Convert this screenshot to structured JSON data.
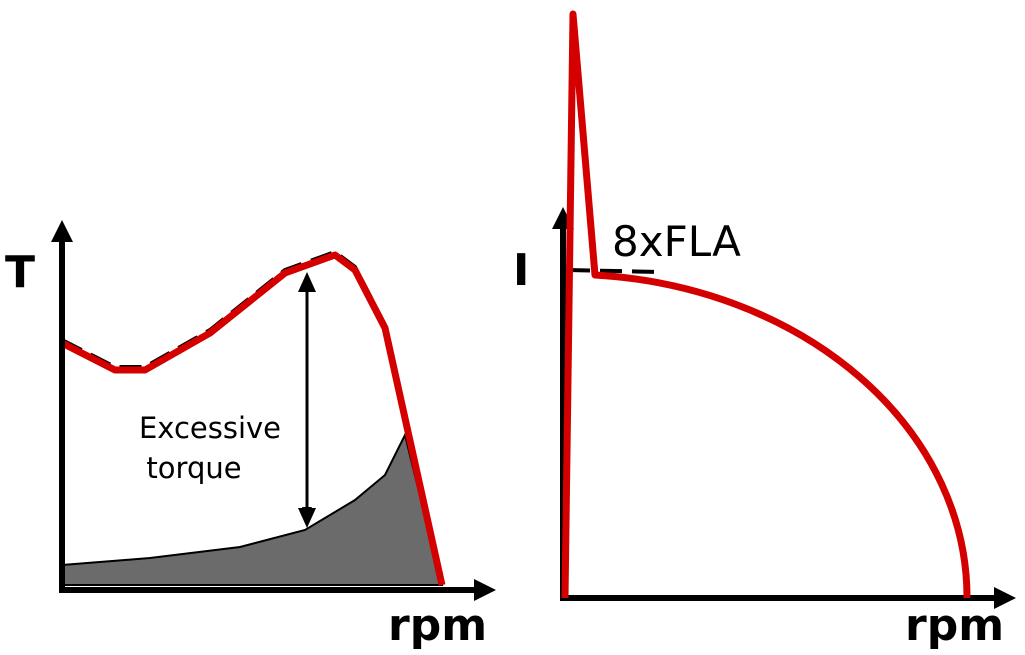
{
  "left": {
    "y_label": "T",
    "x_label": "rpm",
    "annotation": [
      "Excessive",
      "torque"
    ]
  },
  "right": {
    "y_label": "I",
    "x_label": "rpm",
    "annotation": "8xFLA"
  }
}
